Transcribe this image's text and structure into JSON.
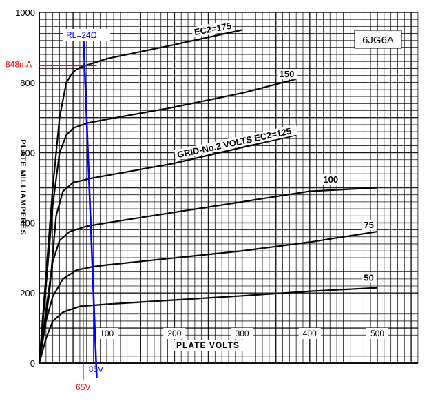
{
  "chart_data": {
    "type": "line",
    "title": "6JG6A",
    "xlabel": "PLATE VOLTS",
    "ylabel": "PLATE MILLIAMPERES",
    "xlim": [
      0,
      500
    ],
    "ylim": [
      0,
      1000
    ],
    "x_ticks": [
      100,
      200,
      300,
      400,
      500
    ],
    "y_ticks": [
      0,
      200,
      400,
      600,
      800,
      1000
    ],
    "grid": true,
    "legend": "none",
    "series": [
      {
        "name": "EC2=175",
        "points": [
          [
            0,
            0
          ],
          [
            10,
            250
          ],
          [
            20,
            500
          ],
          [
            30,
            700
          ],
          [
            40,
            800
          ],
          [
            50,
            830
          ],
          [
            60,
            843
          ],
          [
            100,
            868
          ],
          [
            200,
            908
          ],
          [
            300,
            950
          ]
        ]
      },
      {
        "name": "150",
        "points": [
          [
            0,
            0
          ],
          [
            10,
            220
          ],
          [
            20,
            450
          ],
          [
            30,
            600
          ],
          [
            40,
            650
          ],
          [
            50,
            670
          ],
          [
            70,
            684
          ],
          [
            100,
            695
          ],
          [
            200,
            730
          ],
          [
            300,
            770
          ],
          [
            380,
            810
          ]
        ]
      },
      {
        "name": "GRID-No.2 VOLTS EC2=125",
        "points": [
          [
            0,
            0
          ],
          [
            15,
            200
          ],
          [
            25,
            420
          ],
          [
            35,
            490
          ],
          [
            50,
            515
          ],
          [
            80,
            528
          ],
          [
            100,
            535
          ],
          [
            200,
            570
          ],
          [
            300,
            615
          ],
          [
            380,
            650
          ]
        ]
      },
      {
        "name": "100",
        "points": [
          [
            0,
            0
          ],
          [
            10,
            150
          ],
          [
            20,
            290
          ],
          [
            30,
            350
          ],
          [
            45,
            375
          ],
          [
            70,
            390
          ],
          [
            100,
            400
          ],
          [
            200,
            430
          ],
          [
            300,
            460
          ],
          [
            400,
            490
          ],
          [
            500,
            500
          ]
        ]
      },
      {
        "name": "75",
        "points": [
          [
            0,
            0
          ],
          [
            10,
            120
          ],
          [
            20,
            190
          ],
          [
            35,
            240
          ],
          [
            55,
            265
          ],
          [
            80,
            275
          ],
          [
            100,
            280
          ],
          [
            200,
            300
          ],
          [
            300,
            320
          ],
          [
            400,
            345
          ],
          [
            500,
            375
          ]
        ]
      },
      {
        "name": "50",
        "points": [
          [
            0,
            0
          ],
          [
            10,
            70
          ],
          [
            20,
            120
          ],
          [
            35,
            145
          ],
          [
            60,
            162
          ],
          [
            100,
            168
          ],
          [
            200,
            180
          ],
          [
            300,
            192
          ],
          [
            400,
            205
          ],
          [
            500,
            215
          ]
        ]
      }
    ],
    "load_line": {
      "label": "RL=24Ω",
      "points": [
        [
          65,
          950
        ],
        [
          85,
          0
        ]
      ]
    },
    "annotations": {
      "current_marker": "848mA",
      "current_value": 848,
      "voltage_marker": "65V",
      "voltage_value": 65,
      "load_end_marker": "85V",
      "load_end_value": 85
    },
    "colors": {
      "curves": "#000000",
      "grid": "#000000",
      "load_line": "#0000ff",
      "markers": "#ff0000"
    }
  }
}
